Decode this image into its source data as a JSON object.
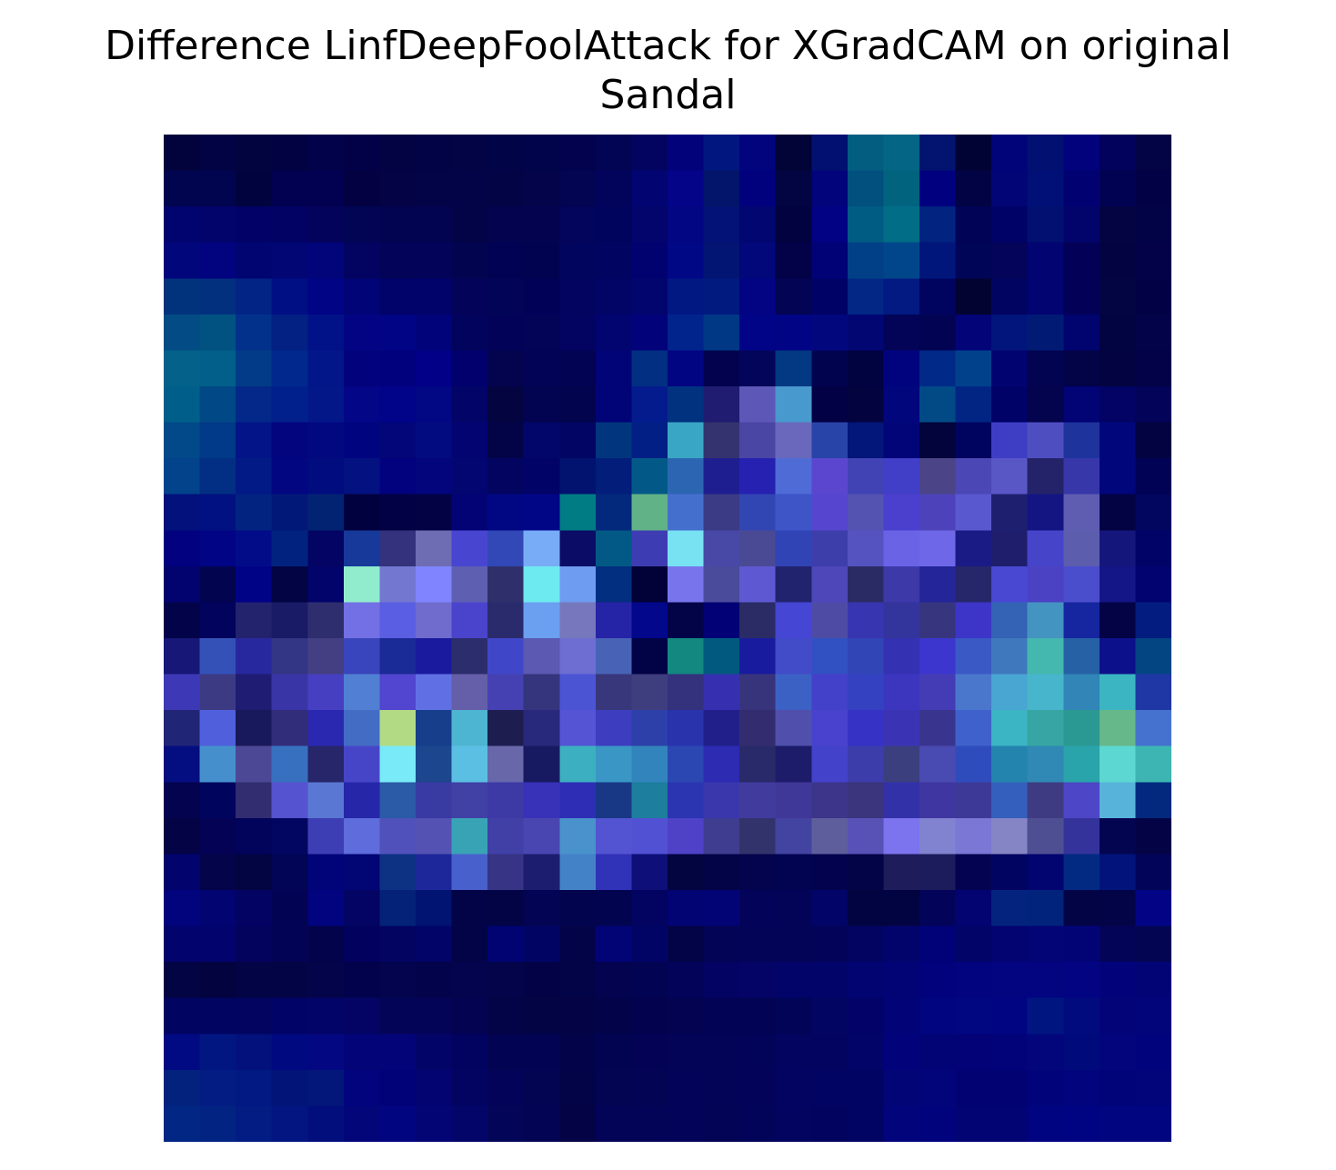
{
  "chart_data": {
    "type": "heatmap",
    "title_lines": [
      "Difference LinfDeepFoolAttack for XGradCAM on original",
      "Sandal"
    ],
    "rows": 28,
    "cols": 28,
    "axes_visible": false,
    "grid": false,
    "legend": "none",
    "colors": [
      [
        "#02033c",
        "#020344",
        "#020440",
        "#020243",
        "#02024a",
        "#020148",
        "#030243",
        "#020347",
        "#020445",
        "#020448",
        "#02044b",
        "#02024e",
        "#020454",
        "#020460",
        "#02037b",
        "#021680",
        "#01047d",
        "#020337",
        "#021072",
        "#025d80",
        "#056584",
        "#021370",
        "#020335",
        "#010478",
        "#021072",
        "#02027d",
        "#02025c",
        "#020445"
      ],
      [
        "#01044e",
        "#01044e",
        "#01033e",
        "#020151",
        "#020151",
        "#030142",
        "#030345",
        "#030347",
        "#030347",
        "#030446",
        "#030449",
        "#030452",
        "#01045a",
        "#020472",
        "#030488",
        "#02156a",
        "#01017d",
        "#030442",
        "#01047b",
        "#01507e",
        "#02637f",
        "#01017f",
        "#020345",
        "#010575",
        "#011076",
        "#020171",
        "#010352",
        "#020145"
      ],
      [
        "#01046e",
        "#02046b",
        "#020167",
        "#020264",
        "#03035c",
        "#020454",
        "#030451",
        "#030451",
        "#030347",
        "#03034f",
        "#030350",
        "#03045b",
        "#01045d",
        "#03056d",
        "#030683",
        "#021276",
        "#010670",
        "#030241",
        "#010284",
        "#015c83",
        "#016d86",
        "#022380",
        "#010357",
        "#010267",
        "#011071",
        "#02046c",
        "#030441",
        "#020346"
      ],
      [
        "#01067a",
        "#02037e",
        "#010571",
        "#020574",
        "#02047a",
        "#030361",
        "#030359",
        "#03035a",
        "#030450",
        "#020255",
        "#020350",
        "#02055d",
        "#020461",
        "#020170",
        "#010886",
        "#021572",
        "#020779",
        "#030249",
        "#010275",
        "#014086",
        "#01468a",
        "#01167b",
        "#010557",
        "#03045a",
        "#020472",
        "#020157",
        "#030342",
        "#030249"
      ],
      [
        "#01337d",
        "#02307f",
        "#022585",
        "#010f84",
        "#010485",
        "#010476",
        "#01026a",
        "#02036a",
        "#03035a",
        "#020457",
        "#020158",
        "#020460",
        "#020466",
        "#02056d",
        "#011883",
        "#011a7f",
        "#030484",
        "#030454",
        "#010266",
        "#022784",
        "#021a81",
        "#01045f",
        "#030332",
        "#020462",
        "#020471",
        "#020157",
        "#030442",
        "#020146"
      ],
      [
        "#034b84",
        "#025281",
        "#02318b",
        "#022183",
        "#011187",
        "#030483",
        "#010484",
        "#01037a",
        "#02035d",
        "#020358",
        "#030358",
        "#030361",
        "#020470",
        "#02027b",
        "#01238c",
        "#013886",
        "#020488",
        "#010585",
        "#02077e",
        "#010673",
        "#030458",
        "#030354",
        "#020477",
        "#01157c",
        "#011b75",
        "#01046e",
        "#020341",
        "#020348"
      ],
      [
        "#03618a",
        "#015f89",
        "#023b87",
        "#01288d",
        "#02168a",
        "#02037c",
        "#01017e",
        "#010087",
        "#01006d",
        "#03034e",
        "#020357",
        "#030353",
        "#010476",
        "#022f82",
        "#010582",
        "#02024e",
        "#020559",
        "#023982",
        "#02034e",
        "#010341",
        "#01037e",
        "#012987",
        "#01418c",
        "#010470",
        "#020451",
        "#030347",
        "#030341",
        "#030249"
      ],
      [
        "#005f8a",
        "#014886",
        "#032889",
        "#02208b",
        "#031789",
        "#020687",
        "#010388",
        "#020784",
        "#030467",
        "#030440",
        "#020351",
        "#02044d",
        "#010477",
        "#031b8d",
        "#01327f",
        "#1f1c71",
        "#5d58b8",
        "#4899cd",
        "#030145",
        "#030340",
        "#01067d",
        "#024a86",
        "#022584",
        "#010268",
        "#03034e",
        "#020374",
        "#030366",
        "#020359"
      ],
      [
        "#014988",
        "#013a88",
        "#021488",
        "#03057f",
        "#02087f",
        "#01047f",
        "#030679",
        "#020b80",
        "#030371",
        "#030448",
        "#020569",
        "#020563",
        "#01367e",
        "#011f85",
        "#3aa6c5",
        "#35336f",
        "#4a46a4",
        "#6a68bc",
        "#2844a8",
        "#031679",
        "#020578",
        "#02043b",
        "#01045f",
        "#3e3ec5",
        "#4f4ec1",
        "#1e339c",
        "#01077b",
        "#020340"
      ],
      [
        "#02438b",
        "#022f84",
        "#021a86",
        "#020680",
        "#010c7f",
        "#041180",
        "#02027f",
        "#02057c",
        "#030670",
        "#020460",
        "#020367",
        "#02126f",
        "#021d7a",
        "#025987",
        "#2c66b2",
        "#1f1e90",
        "#2621b0",
        "#4f6bd6",
        "#5b46d0",
        "#4143b4",
        "#413ec7",
        "#4b4588",
        "#4b47b4",
        "#5957c6",
        "#24236a",
        "#3737aa",
        "#02067b",
        "#010255"
      ],
      [
        "#02117b",
        "#021181",
        "#022380",
        "#021878",
        "#022372",
        "#020140",
        "#030145",
        "#030244",
        "#030375",
        "#010783",
        "#010687",
        "#007c84",
        "#02297c",
        "#62b287",
        "#456fcd",
        "#3a3b84",
        "#3246b3",
        "#3d55c7",
        "#5645cf",
        "#5453b2",
        "#4b3fcd",
        "#4d42b9",
        "#5a58ce",
        "#1f1f6f",
        "#141583",
        "#5e5db2",
        "#030344",
        "#02065f"
      ],
      [
        "#02017f",
        "#010485",
        "#020c89",
        "#01237f",
        "#030463",
        "#16399a",
        "#34327c",
        "#6e6cb2",
        "#4846d1",
        "#3148b6",
        "#78acf7",
        "#0b0c66",
        "#025986",
        "#3e3cb2",
        "#78e1f2",
        "#4848a7",
        "#4a4994",
        "#3044b6",
        "#3e3eaa",
        "#5553c0",
        "#6a63e6",
        "#6e68e8",
        "#1a1b84",
        "#1e1e6c",
        "#4645ca",
        "#5c5dad",
        "#15167c",
        "#010367"
      ],
      [
        "#02036e",
        "#030450",
        "#010387",
        "#030444",
        "#02046b",
        "#90eccd",
        "#7377d0",
        "#8085ff",
        "#5f5fb2",
        "#2f2f6b",
        "#6deaf0",
        "#6e9cf0",
        "#032f80",
        "#020238",
        "#7875ec",
        "#4a4b9b",
        "#5e59d2",
        "#22236f",
        "#4d47ba",
        "#2a2b64",
        "#3d39a9",
        "#25259a",
        "#26276b",
        "#4848d3",
        "#4a42c3",
        "#4a4dcc",
        "#141587",
        "#020370"
      ],
      [
        "#030349",
        "#02035c",
        "#23226d",
        "#1a1b66",
        "#2e2e6f",
        "#7270e4",
        "#5a5ee3",
        "#6f6cce",
        "#4a44cd",
        "#2a2b6c",
        "#6b9ff0",
        "#7777bd",
        "#2523a6",
        "#02078c",
        "#030448",
        "#020276",
        "#2b2b65",
        "#4546d3",
        "#4e4ba5",
        "#3835b1",
        "#34349d",
        "#37357d",
        "#3d35c8",
        "#3462b4",
        "#4494c2",
        "#1526a0",
        "#030346",
        "#031c7f"
      ],
      [
        "#161777",
        "#3451b8",
        "#28289e",
        "#333585",
        "#433f82",
        "#3945bc",
        "#1a2a96",
        "#1a1a9e",
        "#2c2d6d",
        "#3f47c8",
        "#5b59b1",
        "#6d6dd2",
        "#4863b6",
        "#020346",
        "#128880",
        "#02597f",
        "#191b9f",
        "#424bc8",
        "#3150c1",
        "#3145b6",
        "#3431b3",
        "#3c36ce",
        "#3a59c5",
        "#3f78bc",
        "#44b7af",
        "#2561a4",
        "#0d108b",
        "#034583"
      ],
      [
        "#3d39b6",
        "#3d3a84",
        "#1e1d73",
        "#3a35a6",
        "#463fc1",
        "#517fd3",
        "#5245cf",
        "#6070e4",
        "#655ea8",
        "#4541b3",
        "#34357c",
        "#4b55d4",
        "#38377c",
        "#3e3d7e",
        "#34317d",
        "#3630b0",
        "#37347c",
        "#3c61c5",
        "#4340ca",
        "#3441c0",
        "#3c36bf",
        "#433cb5",
        "#4a77cb",
        "#49a5d1",
        "#47b5cb",
        "#3185b7",
        "#3bb5c1",
        "#1f36a5"
      ],
      [
        "#212576",
        "#5060dd",
        "#18185c",
        "#322d7b",
        "#2a28b0",
        "#436dc4",
        "#b2da85",
        "#163e8b",
        "#4db4d1",
        "#1d1d50",
        "#28297c",
        "#5454d4",
        "#3c3dbf",
        "#2d40a9",
        "#2833ac",
        "#21208a",
        "#332d6f",
        "#5050ac",
        "#4942ce",
        "#3632c6",
        "#3a34b5",
        "#39358e",
        "#3f61cb",
        "#3bb4c4",
        "#36a5a3",
        "#2b9993",
        "#66b78a",
        "#4672cf"
      ],
      [
        "#050e81",
        "#4590cc",
        "#4c4895",
        "#3870c0",
        "#27266a",
        "#4745c7",
        "#79eaf7",
        "#1c468e",
        "#5bbfe4",
        "#6767a9",
        "#181a61",
        "#3cb0c0",
        "#3a96c4",
        "#3284bd",
        "#2b47b2",
        "#2c2bb1",
        "#292a69",
        "#1d1c6a",
        "#4342ca",
        "#3c3dab",
        "#3b3f7e",
        "#494ab2",
        "#2f4cbc",
        "#2384ae",
        "#2f89b4",
        "#29a4ab",
        "#5dd7d1",
        "#3db6b3"
      ],
      [
        "#03034f",
        "#01045c",
        "#322d70",
        "#5553cf",
        "#5a77d3",
        "#2527a8",
        "#2b5aa6",
        "#3a3aa3",
        "#4140a5",
        "#3d3aa6",
        "#3832b9",
        "#2e2db6",
        "#183886",
        "#1d7e9d",
        "#2b35b1",
        "#3a37ac",
        "#413b9e",
        "#3f3898",
        "#3c358a",
        "#3a357c",
        "#3231a8",
        "#3f36a1",
        "#3d3a97",
        "#345fbd",
        "#3f3b82",
        "#4d46c6",
        "#57b3da",
        "#03297f"
      ],
      [
        "#030345",
        "#030255",
        "#02035b",
        "#020661",
        "#3d3db4",
        "#5f6cdb",
        "#5151bb",
        "#5452b3",
        "#39a3b6",
        "#4140a6",
        "#4a46b1",
        "#4992cc",
        "#5354d1",
        "#5051d3",
        "#4f42c7",
        "#3e3d8f",
        "#33336b",
        "#4343a1",
        "#5f5e9c",
        "#5852b7",
        "#7c73ee",
        "#8183d0",
        "#7b77d5",
        "#8585c6",
        "#4e4f93",
        "#34339c",
        "#030550",
        "#030346"
      ],
      [
        "#02036d",
        "#030449",
        "#030442",
        "#020456",
        "#010479",
        "#020574",
        "#0d3284",
        "#1e279a",
        "#4760cb",
        "#373485",
        "#1d1d6f",
        "#4482c7",
        "#3032b8",
        "#0f0f79",
        "#030541",
        "#030448",
        "#03044d",
        "#030451",
        "#02024e",
        "#030347",
        "#1e1c5a",
        "#1c1c5c",
        "#030351",
        "#020461",
        "#02056f",
        "#032a82",
        "#02137b",
        "#020459"
      ],
      [
        "#01047c",
        "#010471",
        "#020362",
        "#030354",
        "#01047e",
        "#030463",
        "#032278",
        "#021471",
        "#030447",
        "#030446",
        "#030453",
        "#03044e",
        "#030450",
        "#030361",
        "#020474",
        "#020475",
        "#030459",
        "#030458",
        "#020467",
        "#020442",
        "#020442",
        "#030459",
        "#030371",
        "#03237f",
        "#02237b",
        "#020446",
        "#030447",
        "#020485"
      ],
      [
        "#03036d",
        "#03036d",
        "#03035d",
        "#030355",
        "#03034c",
        "#02025e",
        "#030462",
        "#020467",
        "#020447",
        "#010372",
        "#020464",
        "#030448",
        "#020476",
        "#020465",
        "#030447",
        "#030456",
        "#030457",
        "#030457",
        "#030459",
        "#030462",
        "#02046c",
        "#010278",
        "#030468",
        "#030471",
        "#030475",
        "#020476",
        "#030458",
        "#030553"
      ],
      [
        "#020444",
        "#02033f",
        "#030445",
        "#030445",
        "#030449",
        "#02024c",
        "#03034e",
        "#03034c",
        "#03034e",
        "#030449",
        "#030246",
        "#030347",
        "#030350",
        "#030353",
        "#03035a",
        "#030364",
        "#030466",
        "#030469",
        "#030469",
        "#020471",
        "#020476",
        "#02037c",
        "#02037e",
        "#020480",
        "#020480",
        "#020482",
        "#02037a",
        "#020476"
      ],
      [
        "#020461",
        "#020462",
        "#030360",
        "#020366",
        "#030468",
        "#030464",
        "#030458",
        "#030358",
        "#030351",
        "#030347",
        "#030443",
        "#030346",
        "#020349",
        "#03024e",
        "#030351",
        "#030355",
        "#030355",
        "#020458",
        "#020561",
        "#020269",
        "#010377",
        "#01057f",
        "#010681",
        "#010582",
        "#011581",
        "#010b7e",
        "#020478",
        "#020479"
      ],
      [
        "#010983",
        "#021682",
        "#02117b",
        "#010981",
        "#030781",
        "#030477",
        "#030478",
        "#030467",
        "#020360",
        "#030353",
        "#030353",
        "#030349",
        "#030451",
        "#030255",
        "#030458",
        "#030458",
        "#020459",
        "#030460",
        "#03045f",
        "#030467",
        "#02027b",
        "#020475",
        "#030377",
        "#030379",
        "#03067b",
        "#010a7b",
        "#02057b",
        "#01037c"
      ],
      [
        "#02227e",
        "#021c84",
        "#021883",
        "#031478",
        "#031679",
        "#02047e",
        "#020278",
        "#030472",
        "#030461",
        "#030459",
        "#030553",
        "#030347",
        "#030452",
        "#030454",
        "#030459",
        "#030358",
        "#030459",
        "#030362",
        "#020464",
        "#020464",
        "#020576",
        "#02047a",
        "#020273",
        "#020273",
        "#01037b",
        "#01047d",
        "#010478",
        "#02047a"
      ],
      [
        "#022684",
        "#022381",
        "#021c84",
        "#021580",
        "#020e7b",
        "#030679",
        "#020580",
        "#020573",
        "#030569",
        "#030558",
        "#030554",
        "#030346",
        "#030458",
        "#030458",
        "#030459",
        "#030455",
        "#020459",
        "#030460",
        "#02035f",
        "#010462",
        "#01047a",
        "#01037c",
        "#020474",
        "#020474",
        "#010480",
        "#010482",
        "#010580",
        "#010580"
      ]
    ]
  }
}
